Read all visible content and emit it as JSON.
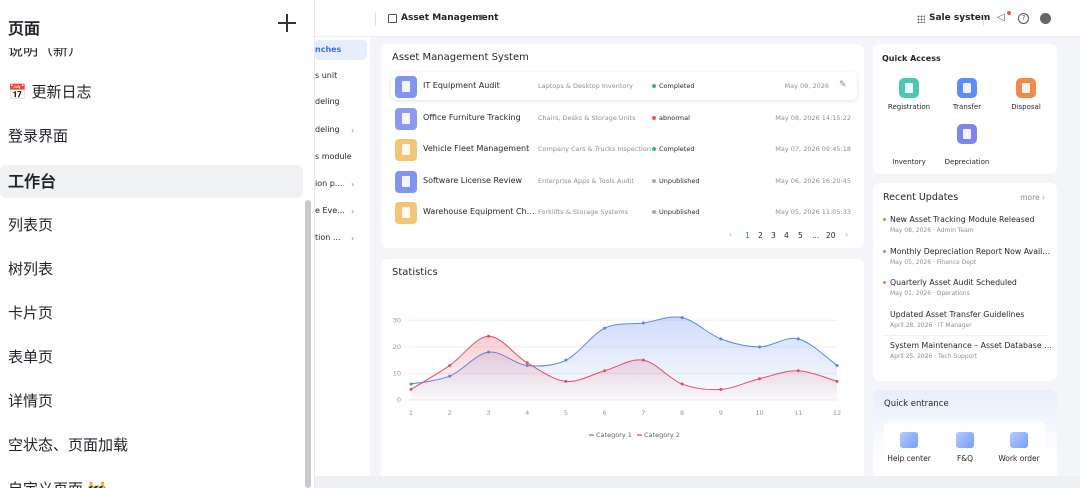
{
  "pages_panel": {
    "title": "页面",
    "items": [
      {
        "label": "说明（新）"
      },
      {
        "label": "📅 更新日志"
      },
      {
        "label": "登录界面"
      },
      {
        "label": "工作台"
      },
      {
        "label": "列表页"
      },
      {
        "label": "树列表"
      },
      {
        "label": "卡片页"
      },
      {
        "label": "表单页"
      },
      {
        "label": "详情页"
      },
      {
        "label": "空状态、页面加载"
      },
      {
        "label": "自定义页面 🚧"
      }
    ]
  },
  "topbar": {
    "breadcrumb": "Asset Management",
    "system": "Sale system"
  },
  "subnav": {
    "items": [
      {
        "label": "nches"
      },
      {
        "label": "s unit"
      },
      {
        "label": "deling"
      },
      {
        "label": "deling"
      },
      {
        "label": "s module"
      },
      {
        "label": "ion p..."
      },
      {
        "label": "e Eve..."
      },
      {
        "label": "tion ..."
      }
    ]
  },
  "asset_list": {
    "title": "Asset Management System",
    "rows": [
      {
        "name": "IT Equipment Audit",
        "category": "Laptops & Desktop Inventory",
        "status": "Completed",
        "status_color": "#2fbd6e",
        "date": "May 09, 2026"
      },
      {
        "name": "Office Furniture Tracking",
        "category": "Chairs, Desks & Storage Units",
        "status": "abnormal",
        "status_color": "#f5534e",
        "date": "May 08, 2026 14:15:22"
      },
      {
        "name": "Vehicle Fleet Management",
        "category": "Company Cars & Trucks Inspection",
        "status": "Completed",
        "status_color": "#2fbd6e",
        "date": "May 07, 2026 09:45:18"
      },
      {
        "name": "Software License Review",
        "category": "Enterprise Apps & Tools Audit",
        "status": "Unpublished",
        "status_color": "#a6a9ad",
        "date": "May 06, 2026 16:20:45"
      },
      {
        "name": "Warehouse Equipment Check",
        "category": "Forklifts & Storage Systems",
        "status": "Unpublished",
        "status_color": "#a6a9ad",
        "date": "May 05, 2026 11:05:33"
      }
    ],
    "pagination": {
      "prev": "‹",
      "pages": [
        "1",
        "2",
        "3",
        "4",
        "5",
        "...",
        "20"
      ],
      "next": "›"
    }
  },
  "quick_access": {
    "title": "Quick Access",
    "items": [
      {
        "label": "Registration",
        "icon": "registration-icon",
        "color": "#4cc8b0"
      },
      {
        "label": "Transfer",
        "icon": "transfer-icon",
        "color": "#5c8df6"
      },
      {
        "label": "Disposal",
        "icon": "disposal-icon",
        "color": "#f08a4b"
      },
      {
        "label": "Inventory",
        "icon": "inventory-icon",
        "color": "#ffffff"
      },
      {
        "label": "Depreciation",
        "icon": "depreciation-icon",
        "color": "#7b86f0"
      }
    ]
  },
  "recent_updates": {
    "title": "Recent Updates",
    "more": "more",
    "items": [
      {
        "title": "New Asset Tracking Module Released",
        "meta": "May 08, 2026 · Admin Team",
        "new": true
      },
      {
        "title": "Monthly Depreciation Report Now Available",
        "meta": "May 05, 2026 · Finance Dept",
        "new": true
      },
      {
        "title": "Quarterly Asset Audit Scheduled",
        "meta": "May 01, 2026 · Operations",
        "new": true
      },
      {
        "title": "Updated Asset Transfer Guidelines",
        "meta": "April 28, 2026 · IT Manager",
        "new": false
      },
      {
        "title": "System Maintenance – Asset Database Upgrade",
        "meta": "April 25, 2026 · Tech Support",
        "new": false
      }
    ]
  },
  "statistics": {
    "title": "Statistics"
  },
  "quick_entrance": {
    "title": "Quick entrance",
    "items": [
      {
        "label": "Help center",
        "icon": "help-center-icon"
      },
      {
        "label": "F&Q",
        "icon": "faq-icon"
      },
      {
        "label": "Work order",
        "icon": "work-order-icon"
      }
    ]
  },
  "chart_data": {
    "type": "line",
    "x": [
      1,
      2,
      3,
      4,
      5,
      6,
      7,
      8,
      9,
      10,
      11,
      12
    ],
    "ylim": [
      0,
      35
    ],
    "yticks": [
      0,
      10,
      20,
      30
    ],
    "grid": true,
    "legend_position": "bottom",
    "series": [
      {
        "name": "Category 1",
        "color": "#5b84f0",
        "values": [
          6,
          9,
          18,
          13,
          15,
          27,
          29,
          31,
          23,
          20,
          23,
          13
        ]
      },
      {
        "name": "Category 2",
        "color": "#e05060",
        "values": [
          4,
          13,
          24,
          14,
          7,
          11,
          15,
          6,
          4,
          8,
          11,
          7
        ]
      }
    ]
  }
}
